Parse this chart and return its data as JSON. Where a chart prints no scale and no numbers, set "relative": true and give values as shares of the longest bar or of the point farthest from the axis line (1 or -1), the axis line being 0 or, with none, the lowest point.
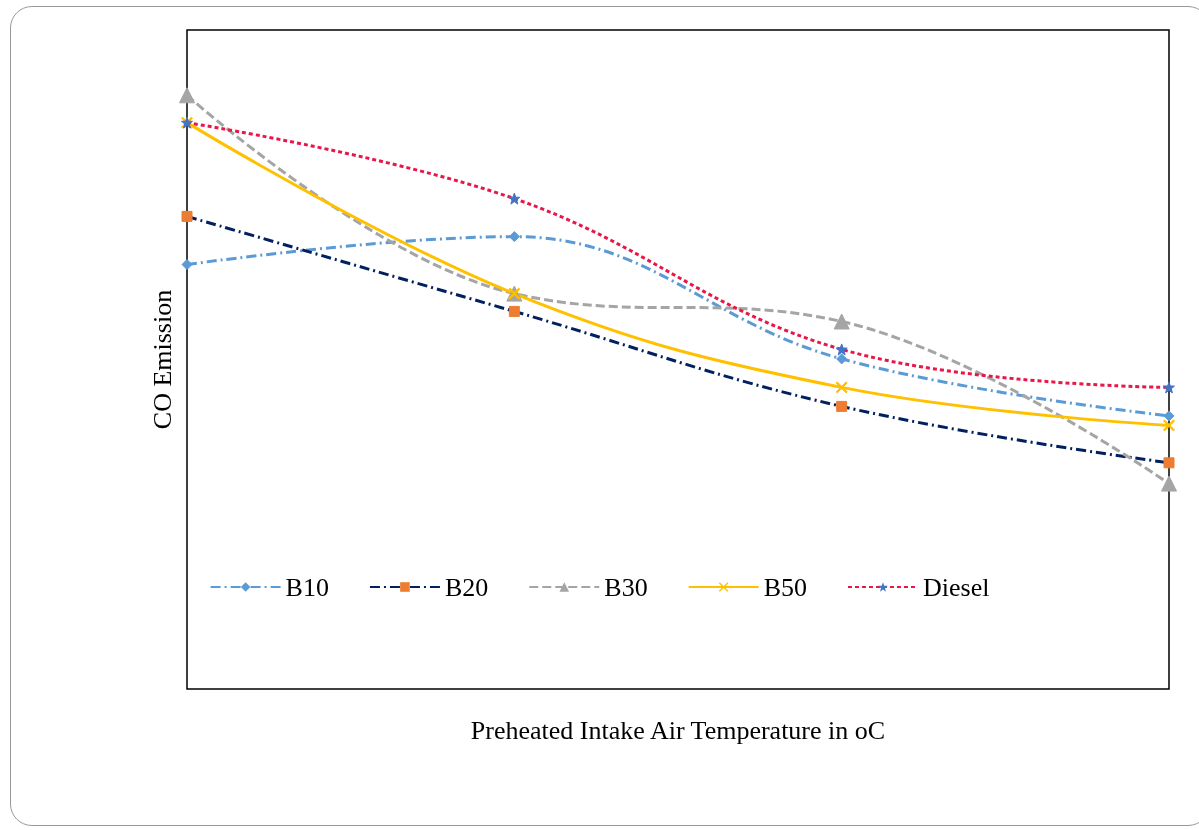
{
  "chart_data": {
    "type": "line",
    "relative": true,
    "xlabel": "Preheated Intake Air Temperature in oC",
    "ylabel": "CO Emission",
    "categories": [
      null,
      null,
      null,
      null
    ],
    "legend": "bottom",
    "grid": false,
    "series": [
      {
        "name": "B10",
        "color": "#5b9bd5",
        "marker": "diamond",
        "line_style": "dashdot",
        "values": [
          0.715,
          0.762,
          0.556,
          0.46
        ]
      },
      {
        "name": "B20",
        "color": "#002060",
        "colors": [
          "#ed7d31",
          "#ed7d31",
          "#ed7d31",
          "#ed7d31"
        ],
        "marker": "square",
        "line_style": "dashdot",
        "values": [
          0.796,
          0.636,
          0.476,
          0.381
        ]
      },
      {
        "name": "B30",
        "color": "#a5a5a5",
        "marker": "triangle",
        "line_style": "dashed",
        "values": [
          1,
          0.666,
          0.619,
          0.346
        ]
      },
      {
        "name": "B50",
        "color": "#ffc000",
        "marker": "cross",
        "line_style": "solid",
        "values": [
          0.954,
          0.666,
          0.508,
          0.444
        ]
      },
      {
        "name": "Diesel",
        "color": "#e8174a",
        "colors": [
          "#4472c4",
          "#4472c4",
          "#4472c4",
          "#4472c4"
        ],
        "marker": "star",
        "line_style": "dotted",
        "values": [
          0.954,
          0.826,
          0.572,
          0.508
        ]
      }
    ]
  }
}
